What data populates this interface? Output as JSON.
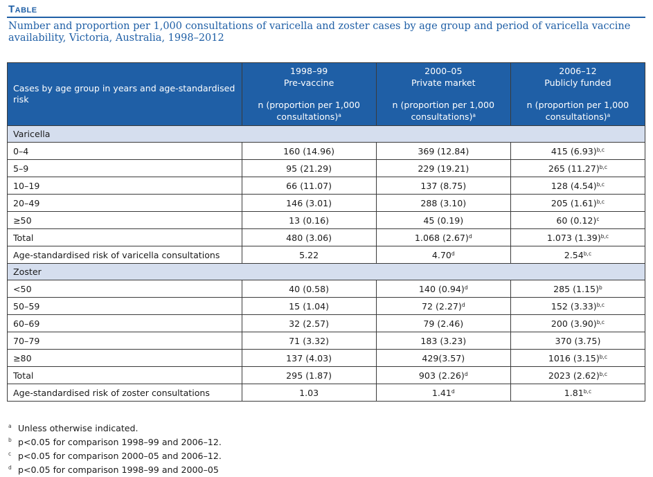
{
  "label": "Table",
  "caption": "Number and proportion per 1,000 consultations of varicella and zoster cases by age group and period of varicella vaccine availability, Victoria, Australia, 1998–2012",
  "header": {
    "first": "Cases by age group in years and age-standardised risk",
    "cols": [
      {
        "period": "1998–99",
        "status": "Pre-vaccine",
        "n": "n (proportion per 1,000 consultations)",
        "sup": "a"
      },
      {
        "period": "2000–05",
        "status": "Private market",
        "n": "n (proportion per 1,000 consultations)",
        "sup": "a"
      },
      {
        "period": "2006–12",
        "status": "Publicly funded",
        "n": "n (proportion per 1,000 consultations)",
        "sup": "a"
      }
    ]
  },
  "sections": [
    {
      "title": "Varicella",
      "rows": [
        {
          "label": "0–4",
          "v": [
            [
              "160 (14.96)",
              ""
            ],
            [
              "369 (12.84)",
              ""
            ],
            [
              "415 (6.93)",
              "b,c"
            ]
          ]
        },
        {
          "label": "5–9",
          "v": [
            [
              "95 (21.29)",
              ""
            ],
            [
              "229 (19.21)",
              ""
            ],
            [
              "265 (11.27)",
              "b,c"
            ]
          ]
        },
        {
          "label": "10–19",
          "v": [
            [
              "66 (11.07)",
              ""
            ],
            [
              "137 (8.75)",
              ""
            ],
            [
              "128 (4.54)",
              "b,c"
            ]
          ]
        },
        {
          "label": "20–49",
          "v": [
            [
              "146 (3.01)",
              ""
            ],
            [
              "288 (3.10)",
              ""
            ],
            [
              "205 (1.61)",
              "b,c"
            ]
          ]
        },
        {
          "label": "≥50",
          "v": [
            [
              "13 (0.16)",
              ""
            ],
            [
              "45 (0.19)",
              ""
            ],
            [
              "60 (0.12)",
              "c"
            ]
          ]
        },
        {
          "label": "Total",
          "v": [
            [
              "480 (3.06)",
              ""
            ],
            [
              "1.068 (2.67)",
              "d"
            ],
            [
              "1.073 (1.39)",
              "b,c"
            ]
          ]
        },
        {
          "label": "Age-standardised risk of varicella consultations",
          "v": [
            [
              "5.22",
              ""
            ],
            [
              "4.70",
              "d"
            ],
            [
              "2.54",
              "b,c"
            ]
          ]
        }
      ]
    },
    {
      "title": "Zoster",
      "rows": [
        {
          "label": "<50",
          "v": [
            [
              "40 (0.58)",
              ""
            ],
            [
              "140 (0.94)",
              "d"
            ],
            [
              "285 (1.15)",
              "b"
            ]
          ]
        },
        {
          "label": "50–59",
          "v": [
            [
              "15 (1.04)",
              ""
            ],
            [
              "72 (2.27)",
              "d"
            ],
            [
              "152 (3.33)",
              "b,c"
            ]
          ]
        },
        {
          "label": "60–69",
          "v": [
            [
              "32 (2.57)",
              ""
            ],
            [
              "79 (2.46)",
              ""
            ],
            [
              "200 (3.90)",
              "b,c"
            ]
          ]
        },
        {
          "label": "70–79",
          "v": [
            [
              "71 (3.32)",
              ""
            ],
            [
              "183 (3.23)",
              ""
            ],
            [
              "370 (3.75)",
              ""
            ]
          ]
        },
        {
          "label": "≥80",
          "v": [
            [
              "137 (4.03)",
              ""
            ],
            [
              "429(3.57)",
              ""
            ],
            [
              "1016 (3.15)",
              "b,c"
            ]
          ]
        },
        {
          "label": "Total",
          "v": [
            [
              "295 (1.87)",
              ""
            ],
            [
              "903 (2.26)",
              "d"
            ],
            [
              "2023 (2.62)",
              "b,c"
            ]
          ]
        },
        {
          "label": "Age-standardised risk of zoster consultations",
          "v": [
            [
              "1.03",
              ""
            ],
            [
              "1.41",
              "d"
            ],
            [
              "1.81",
              "b,c"
            ]
          ]
        }
      ]
    }
  ],
  "footnotes": [
    {
      "mark": "a",
      "text": "Unless otherwise indicated."
    },
    {
      "mark": "b",
      "text": "p<0.05 for comparison 1998–99 and 2006–12."
    },
    {
      "mark": "c",
      "text": "p<0.05 for comparison 2000–05 and 2006–12."
    },
    {
      "mark": "d",
      "text": "p<0.05 for comparison 1998–99 and 2000–05"
    }
  ],
  "colors": {
    "accent": "#1f5fa6",
    "section_bg": "#d5deee"
  }
}
